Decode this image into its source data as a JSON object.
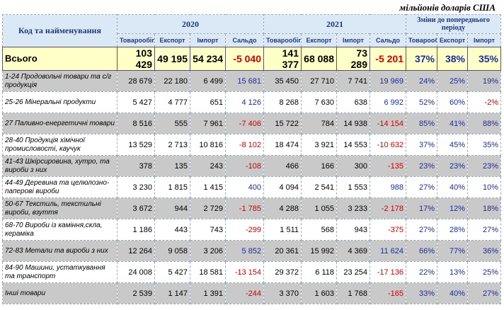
{
  "header": {
    "unit": "мільйонів доларів США",
    "code_name": "Код та найменування",
    "years": [
      "2020",
      "2021"
    ],
    "changes": "Зміни до попереднього періоду",
    "year_columns": [
      "Товарообіг",
      "Експорт",
      "Імпорт",
      "Сальдо"
    ],
    "change_columns": [
      "Товарообіг",
      "Експорт",
      "Імпорт"
    ]
  },
  "table": {
    "rows": [
      [
        "Всього",
        "103 429",
        "49 195",
        "54 234",
        "-5 040",
        "141 377",
        "68 088",
        "73 289",
        "-5 201",
        "37%",
        "38%",
        "35%"
      ],
      [
        "1-24 Продовольчі товари та с/г продукція",
        "28 679",
        "22 180",
        "6 499",
        "15 681",
        "35 450",
        "27 710",
        "7 741",
        "19 969",
        "24%",
        "25%",
        "19%"
      ],
      [
        "25-26 Мінеральні продукти",
        "5 427",
        "4 777",
        "651",
        "4 126",
        "8 268",
        "7 630",
        "638",
        "6 992",
        "52%",
        "60%",
        "-2%"
      ],
      [
        "27 Паливно-енергетичні товари",
        "8 516",
        "555",
        "7 961",
        "-7 406",
        "15 722",
        "784",
        "14 938",
        "-14 154",
        "85%",
        "41%",
        "88%"
      ],
      [
        "28-40 Продукція хімічної промисловості, каучук",
        "13 529",
        "2 713",
        "10 816",
        "-8 102",
        "18 474",
        "3 921",
        "14 553",
        "-10 632",
        "37%",
        "45%",
        "35%"
      ],
      [
        "41-43 Шкірсировина, хутро, та вироби з них",
        "378",
        "135",
        "243",
        "-108",
        "466",
        "166",
        "300",
        "-135",
        "23%",
        "23%",
        "23%"
      ],
      [
        "44-49 Деревина та целюлозно-паперові вироби",
        "3 230",
        "1 815",
        "1 415",
        "400",
        "4 094",
        "2 541",
        "1 553",
        "988",
        "27%",
        "40%",
        "10%"
      ],
      [
        "50-67 Текстиль, текстильні вироби, взуття",
        "3 672",
        "944",
        "2 729",
        "-1 785",
        "4 288",
        "1 055",
        "3 233",
        "-2 178",
        "17%",
        "12%",
        "18%"
      ],
      [
        "68-70 Вироби із каміння,скла, кераміка",
        "1 186",
        "443",
        "743",
        "-299",
        "1 511",
        "568",
        "943",
        "-375",
        "27%",
        "28%",
        "27%"
      ],
      [
        "72-83 Метали та вироби з них",
        "12 264",
        "9 058",
        "3 206",
        "5 852",
        "20 361",
        "15 992",
        "4 369",
        "11 624",
        "66%",
        "77%",
        "36%"
      ],
      [
        "84-90 Машини, устаткування та транспорт",
        "24 008",
        "5 427",
        "18 581",
        "-13 154",
        "29 372",
        "6 118",
        "23 254",
        "-17 136",
        "22%",
        "13%",
        "25%"
      ],
      [
        "Інші товари",
        "2 539",
        "1 147",
        "1 391",
        "-244",
        "3 370",
        "1 603",
        "1 768",
        "-165",
        "33%",
        "40%",
        "27%"
      ]
    ]
  }
}
